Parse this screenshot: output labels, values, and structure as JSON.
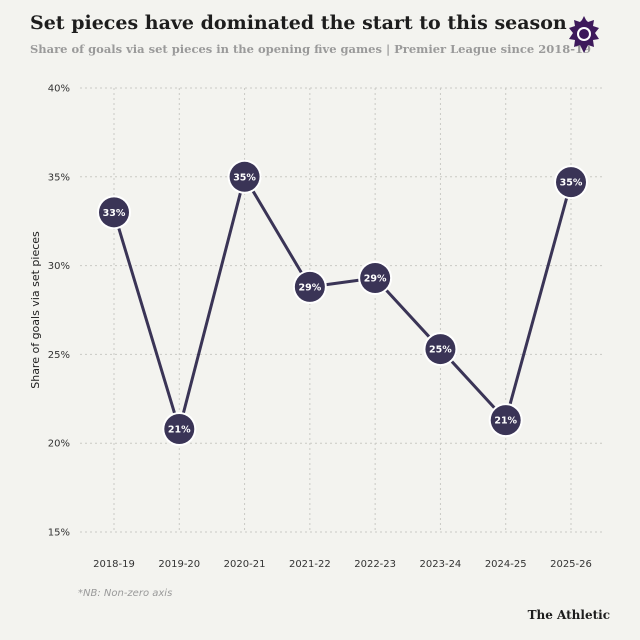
{
  "header": {
    "title": "Set pieces have dominated the start to this season",
    "subtitle": "Share of goals via set pieces in the opening five games | Premier League since 2018-19",
    "logo_icon": "premier-league-lion-icon"
  },
  "footer": {
    "note": "*NB: Non-zero axis",
    "brand": "The Athletic"
  },
  "colors": {
    "background": "#f3f3ef",
    "marker_fill": "#3a3456",
    "marker_ring": "#ffffff",
    "line": "#3a3456",
    "grid": "#c9c9c4",
    "label": "#ffffff"
  },
  "chart_data": {
    "type": "line",
    "title": "Set pieces have dominated the start to this season",
    "subtitle": "Share of goals via set pieces in the opening five games | Premier League since 2018-19",
    "xlabel": "",
    "ylabel": "Share of goals via set pieces",
    "categories": [
      "2018-19",
      "2019-20",
      "2020-21",
      "2021-22",
      "2022-23",
      "2023-24",
      "2024-25",
      "2025-26"
    ],
    "values": [
      33,
      20.8,
      35,
      28.8,
      29.3,
      25.3,
      21.3,
      34.7
    ],
    "data_labels": [
      "33%",
      "21%",
      "35%",
      "29%",
      "29%",
      "25%",
      "21%",
      "35%"
    ],
    "yticks": [
      15,
      20,
      25,
      30,
      35,
      40
    ],
    "ytick_labels": [
      "15%",
      "20%",
      "25%",
      "30%",
      "35%",
      "40%"
    ],
    "ylim": [
      15,
      40
    ],
    "grid": "dashed vertical and horizontal",
    "legend": "none"
  }
}
